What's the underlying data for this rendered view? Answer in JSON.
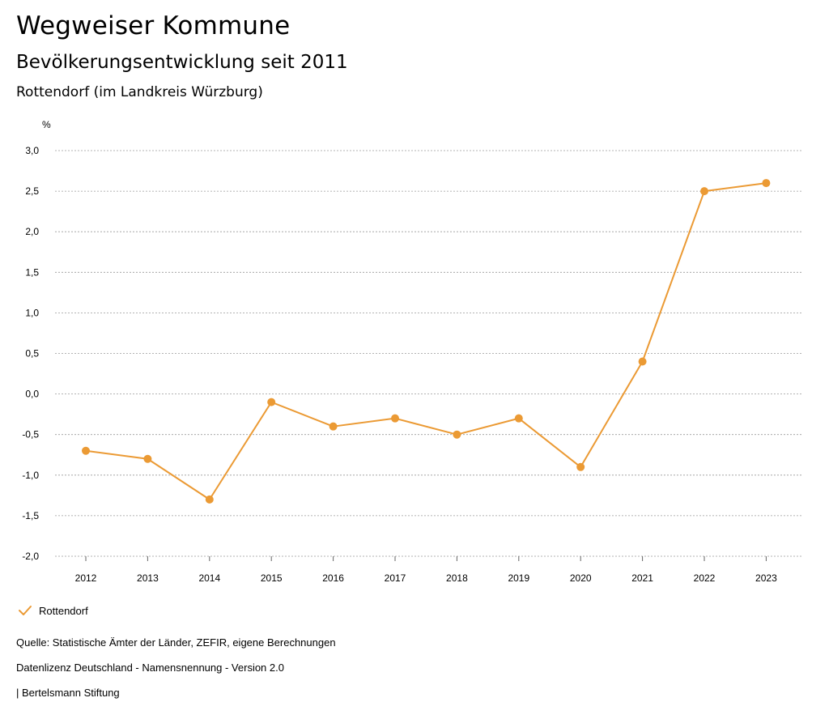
{
  "header": {
    "title": "Wegweiser Kommune",
    "subtitle": "Bevölkerungsentwicklung seit 2011",
    "place": "Rottendorf (im Landkreis Würzburg)"
  },
  "legend": {
    "label": "Rottendorf"
  },
  "footer": {
    "source": "Quelle: Statistische Ämter der Länder, ZEFIR, eigene Berechnungen",
    "license": "Datenlizenz Deutschland - Namensnennung - Version 2.0",
    "brand": "| Bertelsmann Stiftung"
  },
  "colors": {
    "series": "#EB9A34",
    "grid": "#9a9a9a"
  },
  "chart_data": {
    "type": "line",
    "title": "Bevölkerungsentwicklung seit 2011",
    "ylabel": "%",
    "xlabel": "",
    "ylim": [
      -2.0,
      3.0
    ],
    "yticks": [
      3.0,
      2.5,
      2.0,
      1.5,
      1.0,
      0.5,
      0.0,
      -0.5,
      -1.0,
      -1.5,
      -2.0
    ],
    "ytick_labels": [
      "3,0",
      "2,5",
      "2,0",
      "1,5",
      "1,0",
      "0,5",
      "0,0",
      "-0,5",
      "-1,0",
      "-1,5",
      "-2,0"
    ],
    "grid": true,
    "legend_position": "bottom-left",
    "categories": [
      "2012",
      "2013",
      "2014",
      "2015",
      "2016",
      "2017",
      "2018",
      "2019",
      "2020",
      "2021",
      "2022",
      "2023"
    ],
    "series": [
      {
        "name": "Rottendorf",
        "values": [
          -0.7,
          -0.8,
          -1.3,
          -0.1,
          -0.4,
          -0.3,
          -0.5,
          -0.3,
          -0.9,
          0.4,
          2.5,
          2.6
        ]
      }
    ]
  }
}
